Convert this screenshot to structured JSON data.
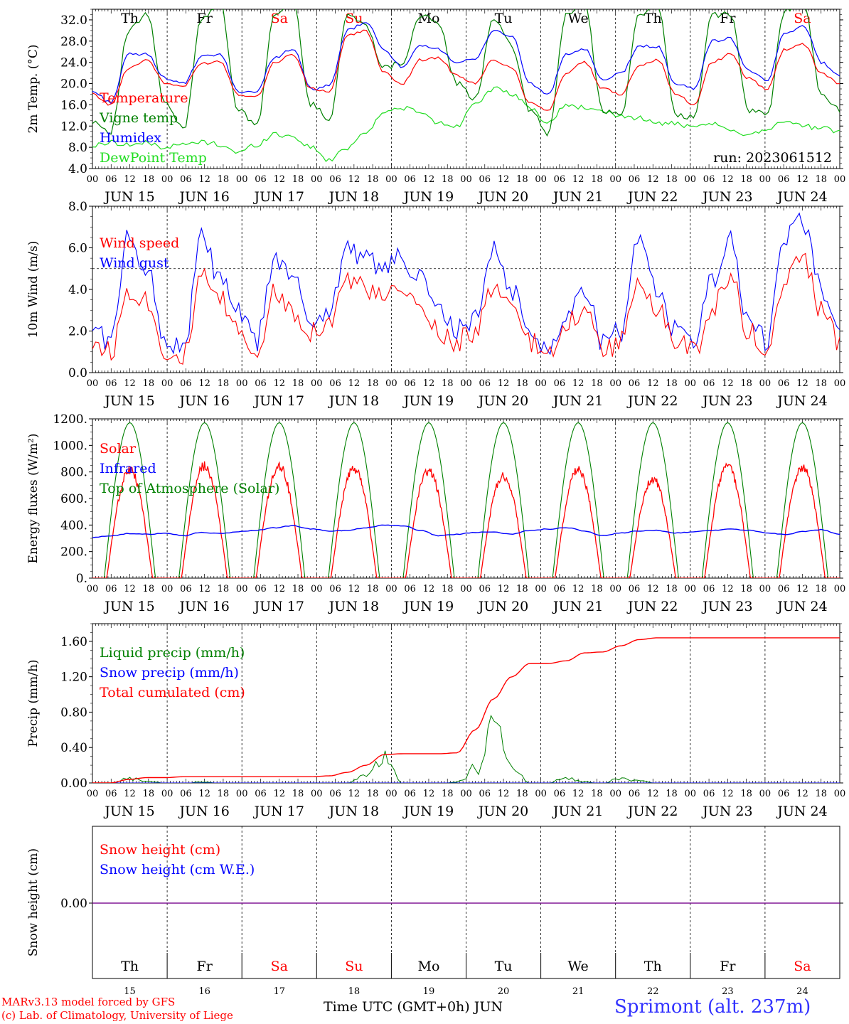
{
  "chart_data": [
    {
      "type": "line",
      "ylabel": "2m Temp. (°C)",
      "ylim": [
        4.0,
        34.0
      ],
      "yticks": [
        "4.0",
        "8.0",
        "12.0",
        "16.0",
        "20.0",
        "24.0",
        "28.0",
        "32.0"
      ],
      "annotation": "run: 2023061512",
      "x_day_labels": [
        "JUN 15",
        "JUN 16",
        "JUN 17",
        "JUN 18",
        "JUN 19",
        "JUN 20",
        "JUN 21",
        "JUN 22",
        "JUN 23",
        "JUN 24"
      ],
      "x_hour_labels": [
        "00",
        "06",
        "12",
        "18"
      ],
      "weekday_labels": [
        "Th",
        "Fr",
        "Sa",
        "Su",
        "Mo",
        "Tu",
        "We",
        "Th",
        "Fr",
        "Sa"
      ],
      "series": [
        {
          "name": "Temperature",
          "color": "#ff0000",
          "values": [
            18.0,
            16.0,
            23.0,
            24.5,
            20.0,
            19.5,
            23.8,
            24.2,
            18.0,
            17.5,
            24.0,
            25.5,
            19.0,
            18.5,
            29.0,
            30.0,
            22.0,
            20.0,
            24.5,
            24.8,
            21.5,
            20.0,
            24.5,
            23.0,
            16.5,
            15.0,
            22.0,
            24.0,
            19.0,
            18.0,
            23.5,
            24.5,
            18.0,
            16.0,
            24.0,
            25.5,
            21.0,
            19.0,
            26.5,
            27.5,
            22.0,
            20.0
          ]
        },
        {
          "name": "Vigne temp",
          "color": "#008000",
          "values": [
            13.0,
            11.0,
            30.0,
            33.0,
            16.0,
            11.5,
            32.5,
            35.0,
            15.0,
            12.0,
            33.0,
            35.0,
            16.0,
            13.5,
            33.0,
            31.0,
            23.0,
            24.0,
            33.0,
            31.0,
            20.0,
            17.0,
            32.5,
            27.0,
            15.0,
            10.5,
            33.0,
            35.0,
            15.0,
            14.0,
            33.0,
            35.0,
            14.0,
            13.5,
            33.0,
            33.0,
            15.0,
            14.0,
            34.0,
            35.0,
            18.0,
            15.0
          ]
        },
        {
          "name": "Humidex",
          "color": "#0000ff",
          "values": [
            18.5,
            16.5,
            25.5,
            25.5,
            21.0,
            20.0,
            25.0,
            25.5,
            18.5,
            18.5,
            25.0,
            26.5,
            19.0,
            19.5,
            30.0,
            31.5,
            26.5,
            23.0,
            27.0,
            26.5,
            24.0,
            24.5,
            30.0,
            29.0,
            20.0,
            18.0,
            25.5,
            26.5,
            20.5,
            22.0,
            27.0,
            27.0,
            20.0,
            19.0,
            28.0,
            28.5,
            22.5,
            20.5,
            29.5,
            31.0,
            24.0,
            21.5
          ]
        },
        {
          "name": "DewPoint Temp",
          "color": "#22dd22",
          "values": [
            8.2,
            9.0,
            8.5,
            8.8,
            8.0,
            8.5,
            9.0,
            8.5,
            7.0,
            8.5,
            10.5,
            10.0,
            8.0,
            5.5,
            8.0,
            11.0,
            14.5,
            15.5,
            14.5,
            12.5,
            12.0,
            16.5,
            19.0,
            18.0,
            15.5,
            12.5,
            16.0,
            15.5,
            14.5,
            14.0,
            13.5,
            12.5,
            12.5,
            11.5,
            12.5,
            11.0,
            10.5,
            11.5,
            13.0,
            12.0,
            11.5,
            11.0
          ]
        }
      ]
    },
    {
      "type": "line",
      "ylabel": "10m Wind (m/s)",
      "ylim": [
        0.0,
        8.0
      ],
      "yticks": [
        "0.0",
        "2.0",
        "4.0",
        "6.0",
        "8.0"
      ],
      "reference_line": 5.0,
      "x_day_labels": [
        "JUN 15",
        "JUN 16",
        "JUN 17",
        "JUN 18",
        "JUN 19",
        "JUN 20",
        "JUN 21",
        "JUN 22",
        "JUN 23",
        "JUN 24"
      ],
      "x_hour_labels": [
        "00",
        "06",
        "12",
        "18"
      ],
      "series": [
        {
          "name": "Wind speed",
          "color": "#ff0000",
          "values": [
            1.5,
            1.0,
            4.0,
            3.5,
            1.0,
            0.8,
            4.5,
            3.5,
            2.0,
            1.0,
            3.8,
            3.0,
            2.0,
            2.5,
            4.5,
            4.0,
            3.5,
            4.0,
            3.0,
            2.0,
            1.5,
            2.0,
            4.0,
            3.0,
            1.5,
            0.7,
            2.5,
            3.0,
            1.0,
            1.5,
            4.5,
            3.0,
            1.5,
            1.0,
            3.0,
            4.8,
            2.0,
            1.0,
            4.5,
            5.5,
            3.0,
            1.5
          ]
        },
        {
          "name": "Wind gust",
          "color": "#0000ff",
          "values": [
            2.2,
            1.5,
            6.5,
            5.0,
            1.5,
            1.2,
            6.5,
            4.5,
            2.8,
            1.5,
            5.5,
            4.5,
            2.5,
            3.0,
            6.0,
            5.5,
            5.0,
            5.5,
            4.5,
            3.0,
            2.0,
            2.5,
            6.0,
            4.0,
            2.0,
            1.0,
            3.0,
            4.0,
            1.5,
            2.0,
            6.5,
            4.0,
            2.0,
            1.5,
            4.5,
            6.3,
            2.5,
            1.5,
            6.5,
            7.2,
            4.0,
            2.5
          ]
        }
      ]
    },
    {
      "type": "line",
      "ylabel": "Energy fluxes (W/m²)",
      "ylim": [
        0,
        1200
      ],
      "yticks": [
        "0.",
        "200.",
        "400.",
        "600.",
        "800.",
        "1000.",
        "1200."
      ],
      "x_day_labels": [
        "JUN 15",
        "JUN 16",
        "JUN 17",
        "JUN 18",
        "JUN 19",
        "JUN 20",
        "JUN 21",
        "JUN 22",
        "JUN 23",
        "JUN 24"
      ],
      "x_hour_labels": [
        "00",
        "06",
        "12",
        "18"
      ],
      "series": [
        {
          "name": "Solar",
          "color": "#ff0000",
          "daily_peak": [
            850,
            880,
            880,
            860,
            840,
            800,
            850,
            780,
            880,
            870
          ]
        },
        {
          "name": "Infrared",
          "color": "#0000ff",
          "values": [
            305,
            320,
            335,
            330,
            340,
            320,
            345,
            335,
            350,
            360,
            380,
            395,
            370,
            355,
            360,
            380,
            400,
            395,
            360,
            320,
            330,
            345,
            350,
            330,
            360,
            370,
            380,
            355,
            320,
            340,
            355,
            360,
            340,
            350,
            360,
            370,
            360,
            340,
            330,
            350,
            365,
            330
          ]
        },
        {
          "name": "Top of Atmosphere (Solar)",
          "color": "#008000",
          "daily_peak": [
            1170,
            1170,
            1170,
            1170,
            1170,
            1170,
            1170,
            1170,
            1170,
            1170
          ]
        }
      ]
    },
    {
      "type": "line",
      "ylabel": "Precip (mm/h)",
      "ylim": [
        0.0,
        1.8
      ],
      "yticks": [
        "0.00",
        "0.40",
        "0.80",
        "1.20",
        "1.60"
      ],
      "x_day_labels": [
        "JUN 15",
        "JUN 16",
        "JUN 17",
        "JUN 18",
        "JUN 19",
        "JUN 20",
        "JUN 21",
        "JUN 22",
        "JUN 23",
        "JUN 24"
      ],
      "x_hour_labels": [
        "00",
        "06",
        "12",
        "18"
      ],
      "series": [
        {
          "name": "Liquid precip (mm/h)",
          "color": "#008000",
          "values": [
            0,
            0,
            0.05,
            0.02,
            0,
            0,
            0.01,
            0,
            0,
            0,
            0,
            0,
            0,
            0,
            0,
            0.08,
            0.25,
            0,
            0,
            0,
            0.01,
            0.15,
            0.62,
            0.15,
            0,
            0,
            0.06,
            0.01,
            0,
            0.05,
            0.02,
            0,
            0,
            0,
            0,
            0,
            0,
            0,
            0,
            0,
            0,
            0
          ]
        },
        {
          "name": "Snow precip (mm/h)",
          "color": "#0000ff",
          "values": [
            0,
            0,
            0,
            0,
            0,
            0,
            0,
            0,
            0,
            0,
            0,
            0,
            0,
            0,
            0,
            0,
            0,
            0,
            0,
            0,
            0,
            0,
            0,
            0,
            0,
            0,
            0,
            0,
            0,
            0,
            0,
            0,
            0,
            0,
            0,
            0,
            0,
            0,
            0,
            0,
            0,
            0
          ]
        },
        {
          "name": "Total cumulated (cm)",
          "color": "#ff0000",
          "values": [
            0,
            0,
            0.04,
            0.06,
            0.06,
            0.07,
            0.07,
            0.07,
            0.07,
            0.07,
            0.07,
            0.07,
            0.07,
            0.08,
            0.12,
            0.2,
            0.32,
            0.33,
            0.33,
            0.33,
            0.34,
            0.6,
            0.95,
            1.2,
            1.35,
            1.35,
            1.38,
            1.47,
            1.48,
            1.55,
            1.62,
            1.64,
            1.64,
            1.64,
            1.64,
            1.64,
            1.64,
            1.64,
            1.64,
            1.64,
            1.64,
            1.64
          ]
        }
      ]
    },
    {
      "type": "line",
      "ylabel": "Snow height (cm)",
      "yticks": [
        "0.00"
      ],
      "x_weekday_labels": [
        "Th",
        "Fr",
        "Sa",
        "Su",
        "Mo",
        "Tu",
        "We",
        "Th",
        "Fr",
        "Sa"
      ],
      "x_day_numbers": [
        "15",
        "16",
        "17",
        "18",
        "19",
        "20",
        "21",
        "22",
        "23",
        "24"
      ],
      "xlabel": "Time UTC (GMT+0h)",
      "month_label": "JUN",
      "series": [
        {
          "name": "Snow height (cm)",
          "color": "#ff0000",
          "values": [
            0,
            0,
            0,
            0,
            0,
            0,
            0,
            0,
            0,
            0,
            0
          ]
        },
        {
          "name": "Snow height (cm W.E.)",
          "color": "#0000ff",
          "values": [
            0,
            0,
            0,
            0,
            0,
            0,
            0,
            0,
            0,
            0,
            0
          ]
        }
      ]
    }
  ],
  "colors": {
    "weekday": "#000000",
    "weekend": "#ff0000",
    "grid": "#000000"
  },
  "footer": {
    "model_line": "MARv3.13 model forced by GFS",
    "credit_line": "(c) Lab. of Climatology, University of Liege",
    "xlabel": "Time UTC (GMT+0h)",
    "month": "JUN",
    "site": "Sprimont (alt. 237m)"
  }
}
